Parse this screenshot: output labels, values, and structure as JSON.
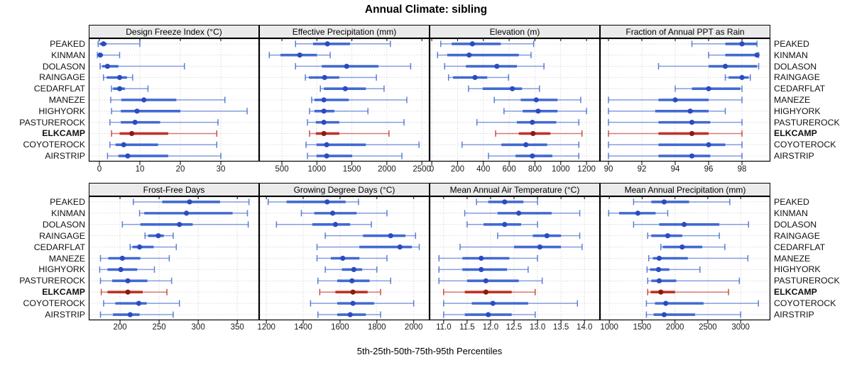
{
  "title": "Annual Climate: sibling",
  "caption": "5th-25th-50th-75th-95th Percentiles",
  "colors": {
    "site_line": "#4169d1",
    "site_dot": "#2a4cc0",
    "highlight_line": "#bf3228",
    "highlight_dot": "#8c1a10",
    "grid": "#c9c9c9",
    "strip_bg": "#ebebeb",
    "border": "#000000"
  },
  "sites": [
    "PEAKED",
    "KINMAN",
    "DOLASON",
    "RAINGAGE",
    "CEDARFLAT",
    "MANEZE",
    "HIGHYORK",
    "PASTUREROCK",
    "ELKCAMP",
    "COYOTEROCK",
    "AIRSTRIP"
  ],
  "highlighted_site": "ELKCAMP",
  "chart_data": {
    "type": "dotplot-percentile-whiskers",
    "layout": "2 rows x 4 columns, free x scales, shared site y-axis",
    "percentiles": [
      "5th",
      "25th",
      "50th",
      "75th",
      "95th"
    ],
    "row_order_top_to_bottom": [
      "PEAKED",
      "KINMAN",
      "DOLASON",
      "RAINGAGE",
      "CEDARFLAT",
      "MANEZE",
      "HIGHYORK",
      "PASTUREROCK",
      "ELKCAMP",
      "COYOTEROCK",
      "AIRSTRIP"
    ],
    "panels": [
      {
        "title": "Design Freeze Index (°C)",
        "xlim": [
          -2.63,
          39.47
        ],
        "ticks": [
          0,
          10,
          20,
          30
        ],
        "tick_labels": [
          "0",
          "10",
          "20",
          "30"
        ],
        "values": [
          [
            -0.3,
            0.1,
            1.0,
            1.8,
            10.0
          ],
          [
            -0.5,
            -0.2,
            0.2,
            0.9,
            5.0
          ],
          [
            0.2,
            0.7,
            2.0,
            4.7,
            21.0
          ],
          [
            1.0,
            1.8,
            5.0,
            6.8,
            8.2
          ],
          [
            3.0,
            3.4,
            5.0,
            6.3,
            12.0
          ],
          [
            2.8,
            5.4,
            11.0,
            19.0,
            31.0
          ],
          [
            3.0,
            5.3,
            9.3,
            20.0,
            36.5
          ],
          [
            2.6,
            5.3,
            8.8,
            15.0,
            29.3
          ],
          [
            3.0,
            5.0,
            8.0,
            17.0,
            29.0
          ],
          [
            2.6,
            4.0,
            6.0,
            14.5,
            29.0
          ],
          [
            2.0,
            4.7,
            7.0,
            17.0,
            30.0
          ]
        ]
      },
      {
        "title": "Effective Precipitation (mm)",
        "xlim": [
          175,
          2610
        ],
        "ticks": [
          500,
          1000,
          1500,
          2000,
          2500
        ],
        "tick_labels": [
          "500",
          "1000",
          "1500",
          "2000",
          "2500"
        ],
        "values": [
          [
            695,
            945,
            1150,
            1475,
            2050
          ],
          [
            320,
            480,
            755,
            1000,
            1190
          ],
          [
            695,
            1070,
            1425,
            1880,
            2340
          ],
          [
            835,
            885,
            1110,
            1320,
            1850
          ],
          [
            1050,
            1100,
            1405,
            1700,
            1960
          ],
          [
            925,
            965,
            1100,
            1455,
            2285
          ],
          [
            895,
            965,
            1100,
            1250,
            1730
          ],
          [
            865,
            985,
            1100,
            1320,
            2245
          ],
          [
            895,
            985,
            1100,
            1320,
            2030
          ],
          [
            845,
            995,
            1140,
            1700,
            2460
          ],
          [
            865,
            995,
            1140,
            1505,
            2215
          ]
        ]
      },
      {
        "title": "Elevation (m)",
        "xlim": [
          -17,
          1304
        ],
        "ticks": [
          0,
          200,
          400,
          600,
          800,
          1000,
          1200
        ],
        "tick_labels": [
          "0",
          "200",
          "400",
          "600",
          "800",
          "1000",
          "1200"
        ],
        "values": [
          [
            70,
            155,
            315,
            535,
            790
          ],
          [
            45,
            120,
            290,
            675,
            770
          ],
          [
            100,
            265,
            505,
            660,
            870
          ],
          [
            130,
            165,
            335,
            430,
            595
          ],
          [
            285,
            395,
            625,
            700,
            835
          ],
          [
            485,
            690,
            810,
            975,
            1155
          ],
          [
            560,
            705,
            825,
            975,
            1200
          ],
          [
            350,
            660,
            780,
            965,
            1140
          ],
          [
            495,
            675,
            785,
            920,
            1165
          ],
          [
            235,
            540,
            730,
            895,
            1140
          ],
          [
            440,
            650,
            780,
            935,
            1140
          ]
        ]
      },
      {
        "title": "Fraction of Annual PPT as Rain",
        "xlim": [
          89.49,
          99.7
        ],
        "ticks": [
          90,
          92,
          94,
          96,
          98
        ],
        "tick_labels": [
          "90",
          "92",
          "94",
          "96",
          "98"
        ],
        "values": [
          [
            95.0,
            97.0,
            98.0,
            98.9,
            98.9
          ],
          [
            96.0,
            97.0,
            98.9,
            98.9,
            99.0
          ],
          [
            93.0,
            96.0,
            97.0,
            98.9,
            99.0
          ],
          [
            97.0,
            97.2,
            98.0,
            98.4,
            98.5
          ],
          [
            94.0,
            95.0,
            96.0,
            97.9,
            98.0
          ],
          [
            90.0,
            93.0,
            94.0,
            96.0,
            98.0
          ],
          [
            90.0,
            92.8,
            94.9,
            96.0,
            97.0
          ],
          [
            90.0,
            93.0,
            95.0,
            96.1,
            98.0
          ],
          [
            90.0,
            93.0,
            95.0,
            96.0,
            98.0
          ],
          [
            90.0,
            93.0,
            96.0,
            97.0,
            98.0
          ],
          [
            90.0,
            93.0,
            95.0,
            96.1,
            98.0
          ]
        ]
      },
      {
        "title": "Frost-Free Days",
        "xlim": [
          160,
          378
        ],
        "ticks": [
          200,
          250,
          300,
          350
        ],
        "tick_labels": [
          "200",
          "250",
          "300",
          "350"
        ],
        "values": [
          [
            217,
            254,
            289,
            328,
            365
          ],
          [
            225,
            231,
            285,
            344,
            363
          ],
          [
            203,
            226,
            276,
            293,
            364
          ],
          [
            232,
            236,
            249,
            256,
            268
          ],
          [
            213,
            216,
            225,
            243,
            272
          ],
          [
            175,
            185,
            203,
            226,
            263
          ],
          [
            174,
            184,
            201,
            222,
            244
          ],
          [
            175,
            190,
            210,
            235,
            266
          ],
          [
            176,
            184,
            210,
            229,
            260
          ],
          [
            179,
            194,
            224,
            234,
            276
          ],
          [
            175,
            191,
            213,
            225,
            268
          ]
        ]
      },
      {
        "title": "Growing Degree Days (°C)",
        "xlim": [
          1161,
          2086
        ],
        "ticks": [
          1200,
          1400,
          1600,
          1800,
          2000
        ],
        "tick_labels": [
          "1200",
          "1400",
          "1600",
          "1800",
          "2000"
        ],
        "values": [
          [
            1210,
            1310,
            1530,
            1630,
            1700
          ],
          [
            1390,
            1460,
            1560,
            1690,
            1855
          ],
          [
            1255,
            1450,
            1575,
            1655,
            1770
          ],
          [
            1520,
            1725,
            1875,
            1955,
            2010
          ],
          [
            1475,
            1705,
            1925,
            1990,
            2030
          ],
          [
            1475,
            1550,
            1615,
            1705,
            1855
          ],
          [
            1520,
            1610,
            1675,
            1720,
            1800
          ],
          [
            1480,
            1585,
            1665,
            1760,
            1875
          ],
          [
            1490,
            1575,
            1670,
            1750,
            1820
          ],
          [
            1440,
            1585,
            1670,
            1785,
            2000
          ],
          [
            1480,
            1585,
            1655,
            1740,
            1820
          ]
        ]
      },
      {
        "title": "Mean Annual Air Temperature (°C)",
        "xlim": [
          10.7,
          14.33
        ],
        "ticks": [
          11.0,
          11.5,
          12.0,
          12.5,
          13.0,
          13.5,
          14.0
        ],
        "tick_labels": [
          "11.0",
          "11.5",
          "12.0",
          "12.5",
          "13.0",
          "13.5",
          "14.0"
        ],
        "values": [
          [
            11.7,
            11.95,
            12.3,
            12.7,
            13.0
          ],
          [
            11.45,
            12.15,
            12.6,
            13.3,
            13.9
          ],
          [
            11.5,
            11.85,
            12.3,
            12.65,
            13.0
          ],
          [
            12.15,
            12.9,
            13.2,
            13.5,
            13.9
          ],
          [
            11.35,
            12.5,
            13.05,
            13.5,
            13.95
          ],
          [
            10.9,
            11.4,
            11.8,
            12.4,
            13.0
          ],
          [
            10.9,
            11.4,
            11.8,
            12.35,
            12.8
          ],
          [
            10.9,
            11.5,
            11.9,
            12.6,
            13.1
          ],
          [
            11.0,
            11.45,
            11.9,
            12.45,
            12.95
          ],
          [
            11.0,
            11.6,
            12.05,
            12.8,
            13.85
          ],
          [
            11.0,
            11.45,
            11.95,
            12.45,
            12.95
          ]
        ]
      },
      {
        "title": "Mean Annual Precipitation (mm)",
        "xlim": [
          858,
          3452
        ],
        "ticks": [
          1000,
          1500,
          2000,
          2500,
          3000
        ],
        "tick_labels": [
          "1000",
          "1500",
          "2000",
          "2500",
          "3000"
        ],
        "values": [
          [
            1370,
            1640,
            1835,
            2215,
            2835
          ],
          [
            990,
            1150,
            1435,
            1705,
            1890
          ],
          [
            1370,
            1760,
            2140,
            2675,
            3120
          ],
          [
            1585,
            1640,
            1890,
            2110,
            2675
          ],
          [
            1785,
            1815,
            2110,
            2415,
            2760
          ],
          [
            1600,
            1665,
            1760,
            2195,
            3110
          ],
          [
            1575,
            1620,
            1750,
            1915,
            2380
          ],
          [
            1585,
            1640,
            1760,
            2020,
            2980
          ],
          [
            1585,
            1630,
            1785,
            2000,
            2815
          ],
          [
            1565,
            1695,
            1860,
            2435,
            3270
          ],
          [
            1565,
            1675,
            1835,
            2305,
            3000
          ]
        ]
      }
    ]
  }
}
